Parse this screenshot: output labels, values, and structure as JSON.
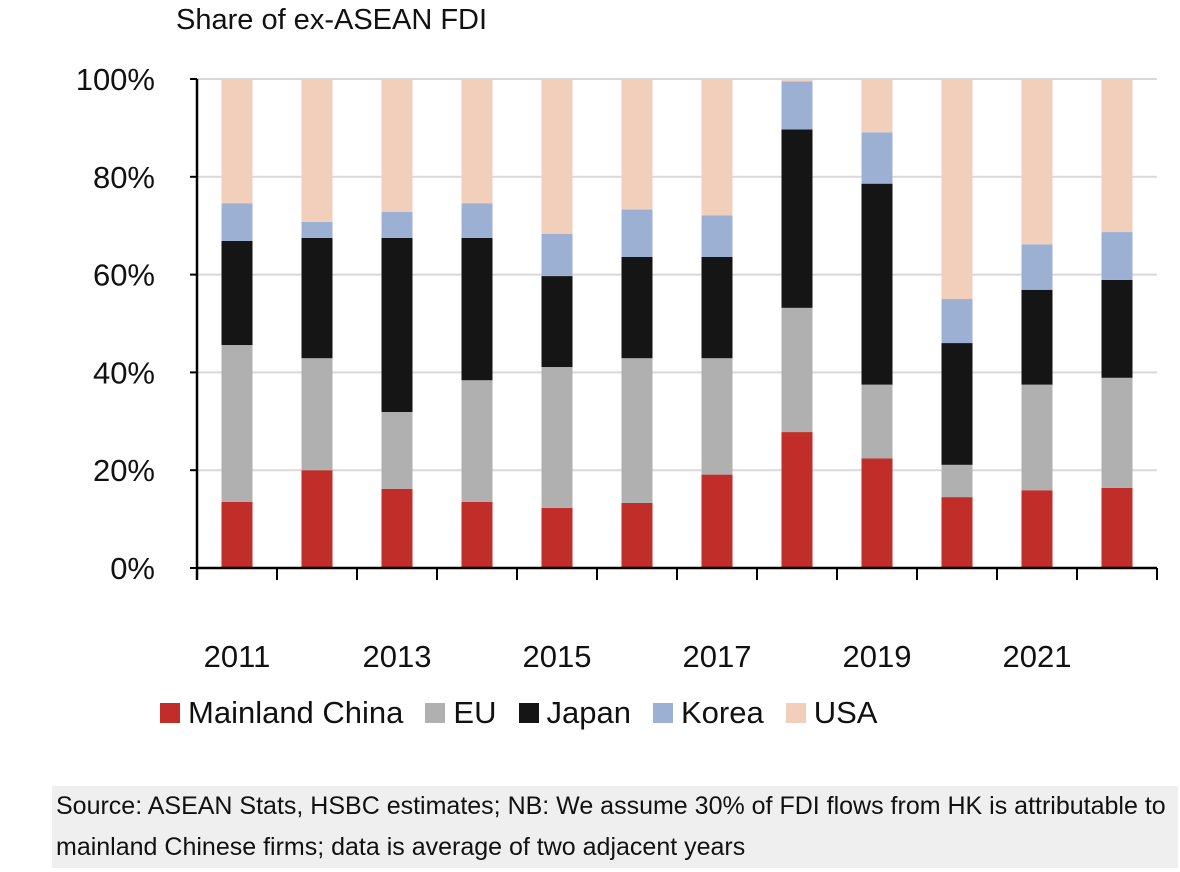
{
  "chart_data": {
    "type": "bar",
    "stacked": true,
    "title": "Share of ex-ASEAN FDI",
    "xlabel": "",
    "ylabel": "",
    "ylim": [
      0,
      100
    ],
    "y_unit": "%",
    "y_ticks": [
      "0%",
      "20%",
      "40%",
      "60%",
      "80%",
      "100%"
    ],
    "categories": [
      "2011",
      "2012",
      "2013",
      "2014",
      "2015",
      "2016",
      "2017",
      "2018",
      "2019",
      "2020",
      "2021",
      "2022"
    ],
    "x_tick_labels": [
      "2011",
      "",
      "2013",
      "",
      "2015",
      "",
      "2017",
      "",
      "2019",
      "",
      "2021",
      ""
    ],
    "grid": true,
    "legend_position": "bottom",
    "series": [
      {
        "name": "Mainland China",
        "color": "#c12d28",
        "values": [
          13.5,
          20.0,
          16.2,
          13.5,
          12.3,
          13.3,
          19.1,
          27.8,
          22.4,
          14.5,
          15.9,
          16.4
        ]
      },
      {
        "name": "EU",
        "color": "#b0b0b0",
        "values": [
          32.1,
          22.9,
          15.7,
          24.9,
          28.8,
          29.6,
          23.8,
          25.4,
          15.1,
          6.6,
          21.6,
          22.5
        ]
      },
      {
        "name": "Japan",
        "color": "#151515",
        "values": [
          21.3,
          24.6,
          35.6,
          29.1,
          18.6,
          20.7,
          20.7,
          36.5,
          41.1,
          24.9,
          19.4,
          20.0
        ]
      },
      {
        "name": "Korea",
        "color": "#9cb0d4",
        "values": [
          7.7,
          3.3,
          5.3,
          7.1,
          8.6,
          9.7,
          8.5,
          9.8,
          10.5,
          9.0,
          9.3,
          9.8
        ]
      },
      {
        "name": "USA",
        "color": "#f2cfbb",
        "values": [
          25.4,
          29.2,
          27.2,
          25.4,
          31.7,
          26.7,
          27.9,
          0.5,
          10.9,
          45.0,
          33.8,
          31.3
        ]
      }
    ]
  },
  "source": "Source: ASEAN Stats, HSBC estimates; NB: We assume 30% of FDI flows from HK is attributable to mainland Chinese firms; data is average of two adjacent years"
}
